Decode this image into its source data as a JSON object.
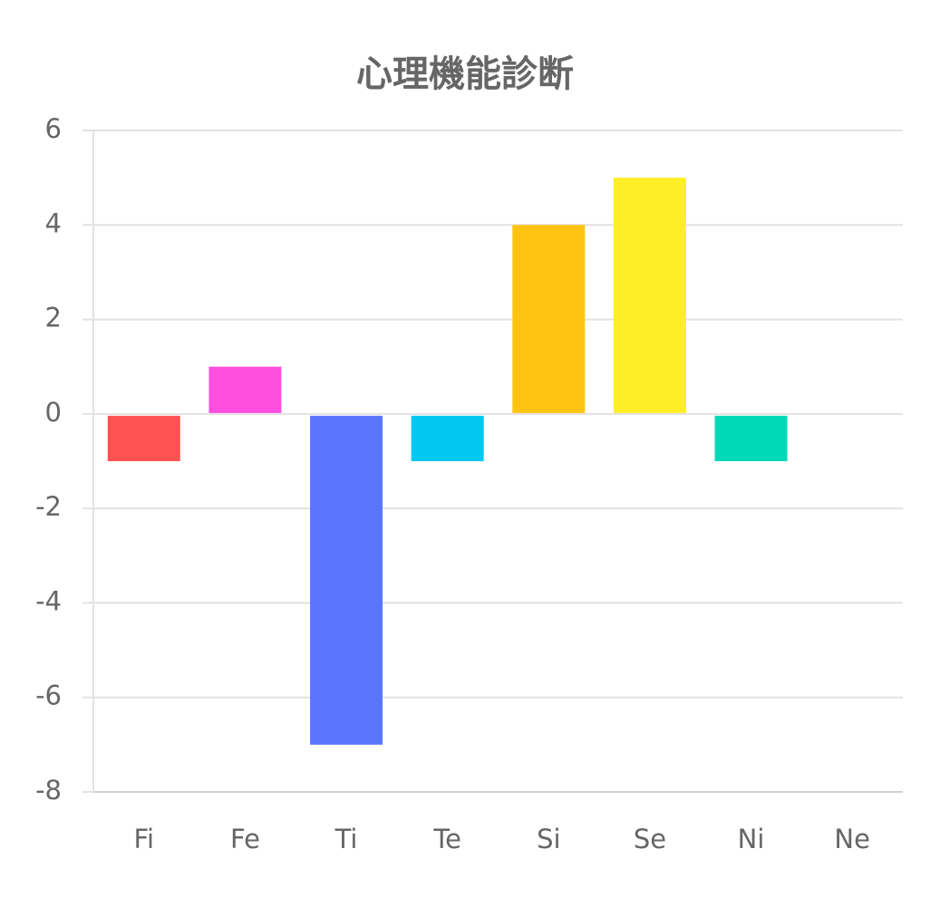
{
  "chart_data": {
    "type": "bar",
    "title": "心理機能診断",
    "categories": [
      "Fi",
      "Fe",
      "Ti",
      "Te",
      "Si",
      "Se",
      "Ni",
      "Ne"
    ],
    "values": [
      -1,
      1,
      -7,
      -1,
      4,
      5,
      -1,
      0
    ],
    "colors": [
      "#ff5252",
      "#ff4fe0",
      "#5a76ff",
      "#00c8f0",
      "#ffc312",
      "#ffee26",
      "#00d9b8",
      "#9e9e9e"
    ],
    "ylim": [
      -8,
      6
    ],
    "yticks": [
      -8,
      -6,
      -4,
      -2,
      0,
      2,
      4,
      6
    ],
    "grid": true
  }
}
